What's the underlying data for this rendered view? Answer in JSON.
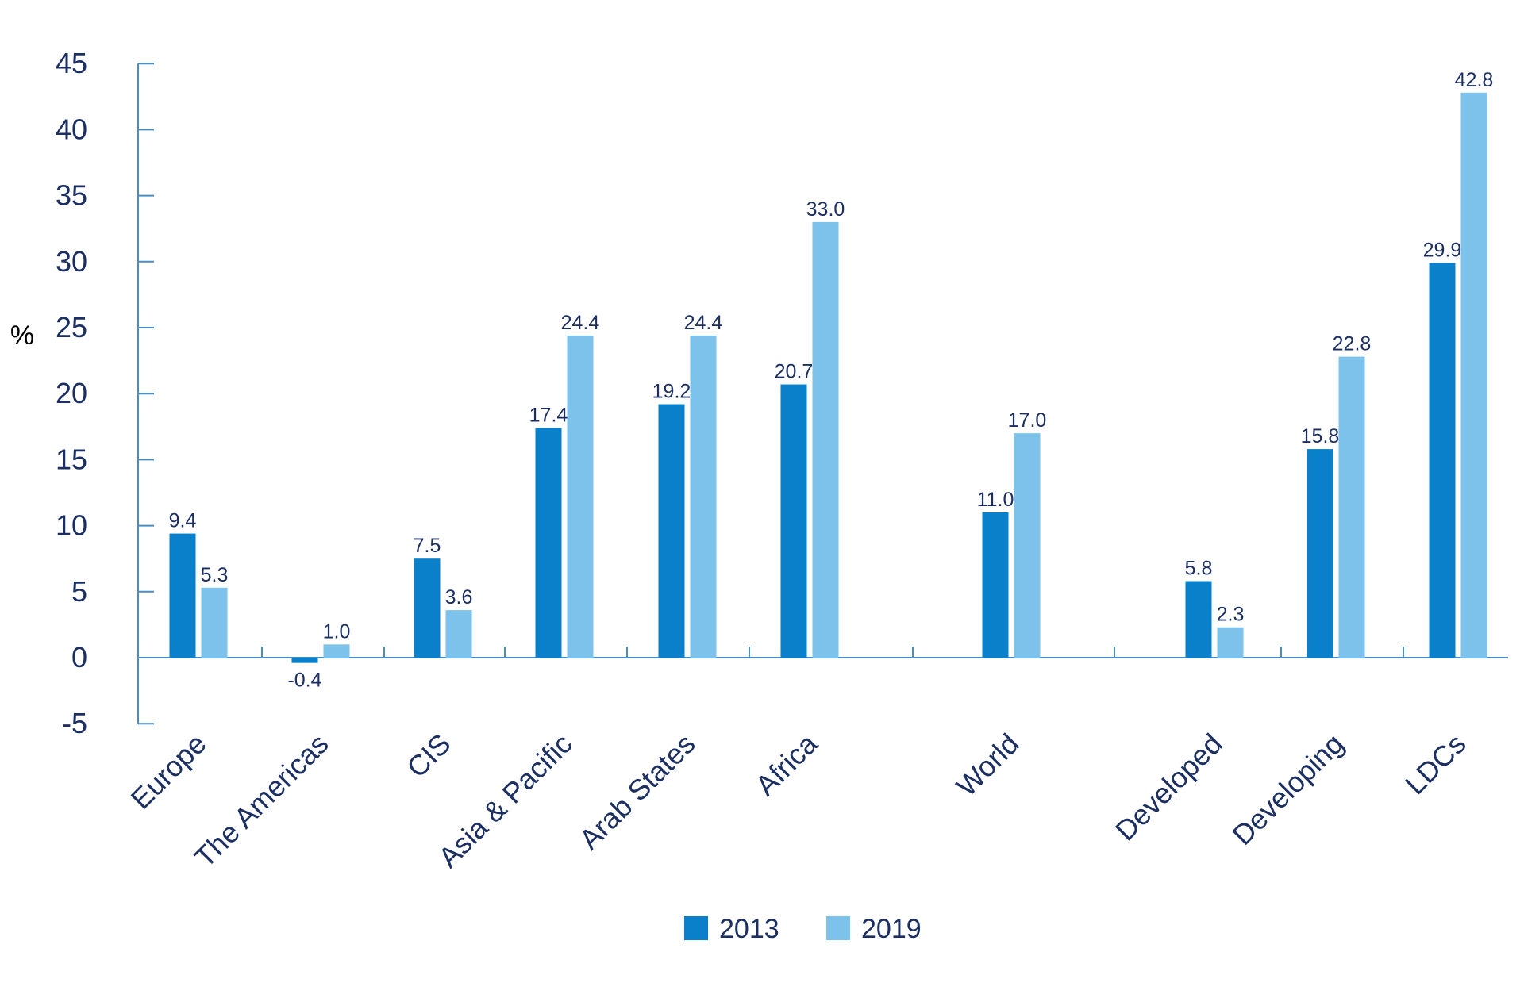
{
  "chart_data": {
    "type": "bar",
    "categories": [
      "Europe",
      "The Americas",
      "CIS",
      "Asia & Pacific",
      "Arab States",
      "Africa",
      "World",
      "Developed",
      "Developing",
      "LDCs"
    ],
    "series": [
      {
        "name": "2013",
        "values": [
          9.4,
          -0.4,
          7.5,
          17.4,
          19.2,
          20.7,
          11.0,
          5.8,
          15.8,
          29.9
        ],
        "labels": [
          "9.4",
          "-0.4",
          "7.5",
          "17.4",
          "19.2",
          "20.7",
          "11.0",
          "5.8",
          "15.8",
          "29.9"
        ],
        "color": "#0a7fca"
      },
      {
        "name": "2019",
        "values": [
          5.3,
          1.0,
          3.6,
          24.4,
          24.4,
          33.0,
          17.0,
          2.3,
          22.8,
          42.8
        ],
        "labels": [
          "5.3",
          "1.0",
          "3.6",
          "24.4",
          "24.4",
          "33.0",
          "17.0",
          "2.3",
          "22.8",
          "42.8"
        ],
        "color": "#7dc2ea"
      }
    ],
    "ylabel": "%",
    "ylim": [
      -5,
      45
    ],
    "yticks": [
      "-5",
      "0",
      "5",
      "10",
      "15",
      "20",
      "25",
      "30",
      "35",
      "40",
      "45"
    ],
    "grid": false,
    "legend_position": "bottom-center",
    "text_color": "#1b2f63",
    "axis_color": "#4a8cc4"
  }
}
